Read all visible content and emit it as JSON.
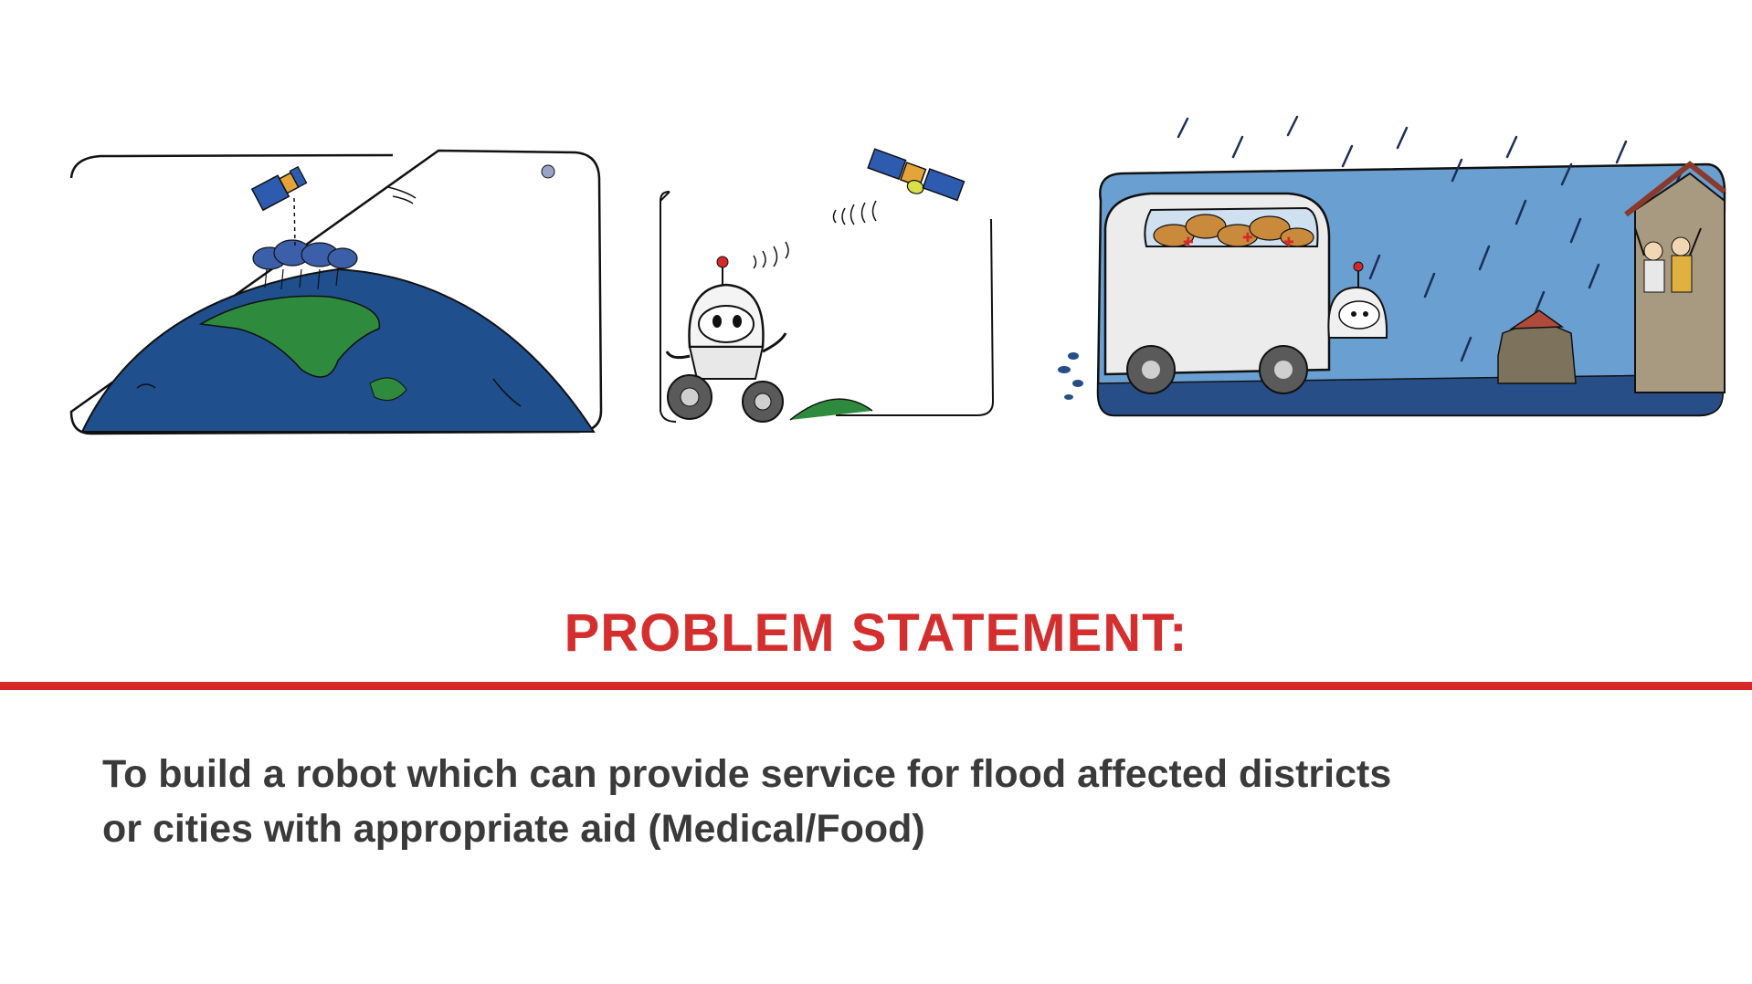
{
  "slide": {
    "title": "PROBLEM STATEMENT:",
    "statement_lines": [
      "To build a robot which can provide service for flood affected districts",
      "or cities with appropriate aid (Medical/Food)"
    ]
  },
  "colors": {
    "title": "#d32f2f",
    "divider": "#d62828",
    "body_text": "#3a3a3a",
    "ocean": "#1f4f8c",
    "land": "#2e8b3e",
    "flood_sky": "#6a9fd1",
    "satellite_panel": "#2c5bb0"
  },
  "illustrations": [
    {
      "name": "earth-satellite-icon"
    },
    {
      "name": "robot-satellite-signal-icon"
    },
    {
      "name": "flood-rescue-vehicle-icon"
    }
  ]
}
